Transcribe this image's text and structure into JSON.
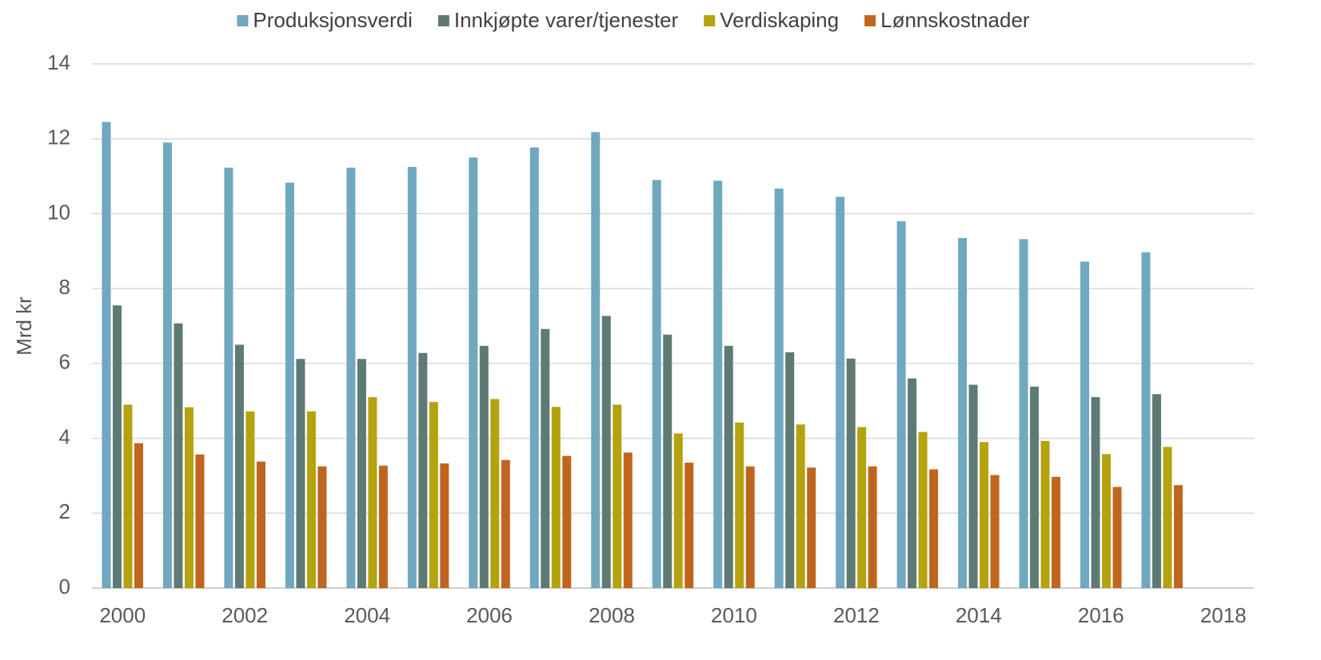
{
  "chart_data": {
    "type": "bar",
    "y_label": "Mrd kr",
    "categories": [
      "2000",
      null,
      "2002",
      null,
      "2004",
      null,
      "2006",
      null,
      "2008",
      null,
      "2010",
      null,
      "2012",
      null,
      "2014",
      null,
      "2016",
      null,
      "2018"
    ],
    "series": [
      {
        "name": "Produksjonsverdi",
        "color": "#6fa8bf",
        "values": [
          12.45,
          11.9,
          11.23,
          10.83,
          11.23,
          11.25,
          11.5,
          11.77,
          12.18,
          10.9,
          10.88,
          10.67,
          10.45,
          9.8,
          9.35,
          9.32,
          8.72,
          8.97,
          null
        ]
      },
      {
        "name": "Innkjøpte varer/tjenester",
        "color": "#5e7a74",
        "values": [
          7.55,
          7.07,
          6.5,
          6.12,
          6.12,
          6.28,
          6.47,
          6.92,
          7.27,
          6.77,
          6.47,
          6.3,
          6.13,
          5.6,
          5.43,
          5.38,
          5.1,
          5.18,
          null
        ]
      },
      {
        "name": "Verdiskaping",
        "color": "#b5a20f",
        "values": [
          4.9,
          4.83,
          4.72,
          4.72,
          5.1,
          4.97,
          5.05,
          4.84,
          4.9,
          4.13,
          4.42,
          4.37,
          4.3,
          4.17,
          3.9,
          3.93,
          3.58,
          3.77,
          null
        ]
      },
      {
        "name": "Lønnskostnader",
        "color": "#c0651e",
        "values": [
          3.87,
          3.57,
          3.38,
          3.25,
          3.27,
          3.33,
          3.42,
          3.53,
          3.62,
          3.35,
          3.25,
          3.22,
          3.25,
          3.17,
          3.02,
          2.97,
          2.7,
          2.75,
          null
        ]
      }
    ],
    "ylim": [
      0,
      14
    ],
    "yticks": [
      0,
      2,
      4,
      6,
      8,
      10,
      12,
      14
    ],
    "grid": true,
    "legend": "top"
  }
}
